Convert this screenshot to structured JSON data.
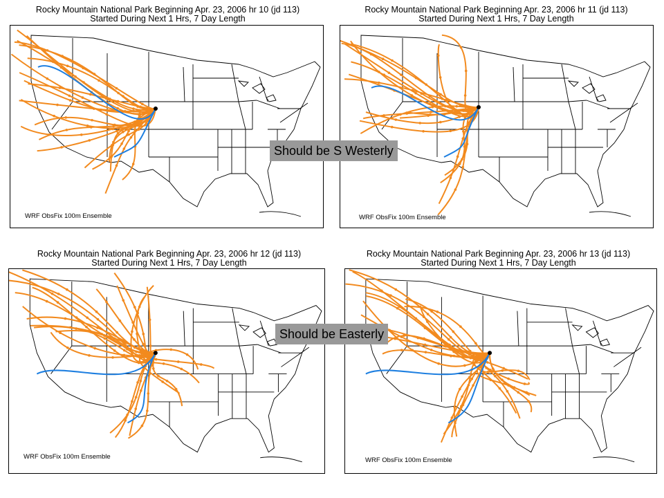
{
  "panels": [
    {
      "line1": "Rocky Mountain National Park Beginning Apr. 23, 2006  hr 10 (jd 113)",
      "line2": "Started During Next 1 Hrs, 7 Day Length",
      "ensemble": "WRF ObsFix 100m Ensemble"
    },
    {
      "line1": "Rocky Mountain National Park Beginning Apr. 23, 2006  hr 11 (jd 113)",
      "line2": "Started During Next 1 Hrs, 7 Day Length",
      "ensemble": "WRF ObsFix 100m Ensemble"
    },
    {
      "line1": "Rocky Mountain National Park Beginning Apr. 23, 2006  hr 12 (jd 113)",
      "line2": "Started During Next 1 Hrs, 7 Day Length",
      "ensemble": "WRF ObsFix 100m Ensemble"
    },
    {
      "line1": "Rocky Mountain National Park Beginning Apr. 23, 2006  hr 13 (jd 113)",
      "line2": "Started During Next 1 Hrs, 7 Day Length",
      "ensemble": "WRF ObsFix 100m Ensemble"
    }
  ],
  "callouts": {
    "top": "Should be S Westerly",
    "bottom": "Should be Easterly"
  },
  "colors": {
    "ensemble_track": "#f28a1e",
    "obs_track": "#1e7fe0",
    "callout_bg": "#999999",
    "map_lines": "#000000"
  }
}
